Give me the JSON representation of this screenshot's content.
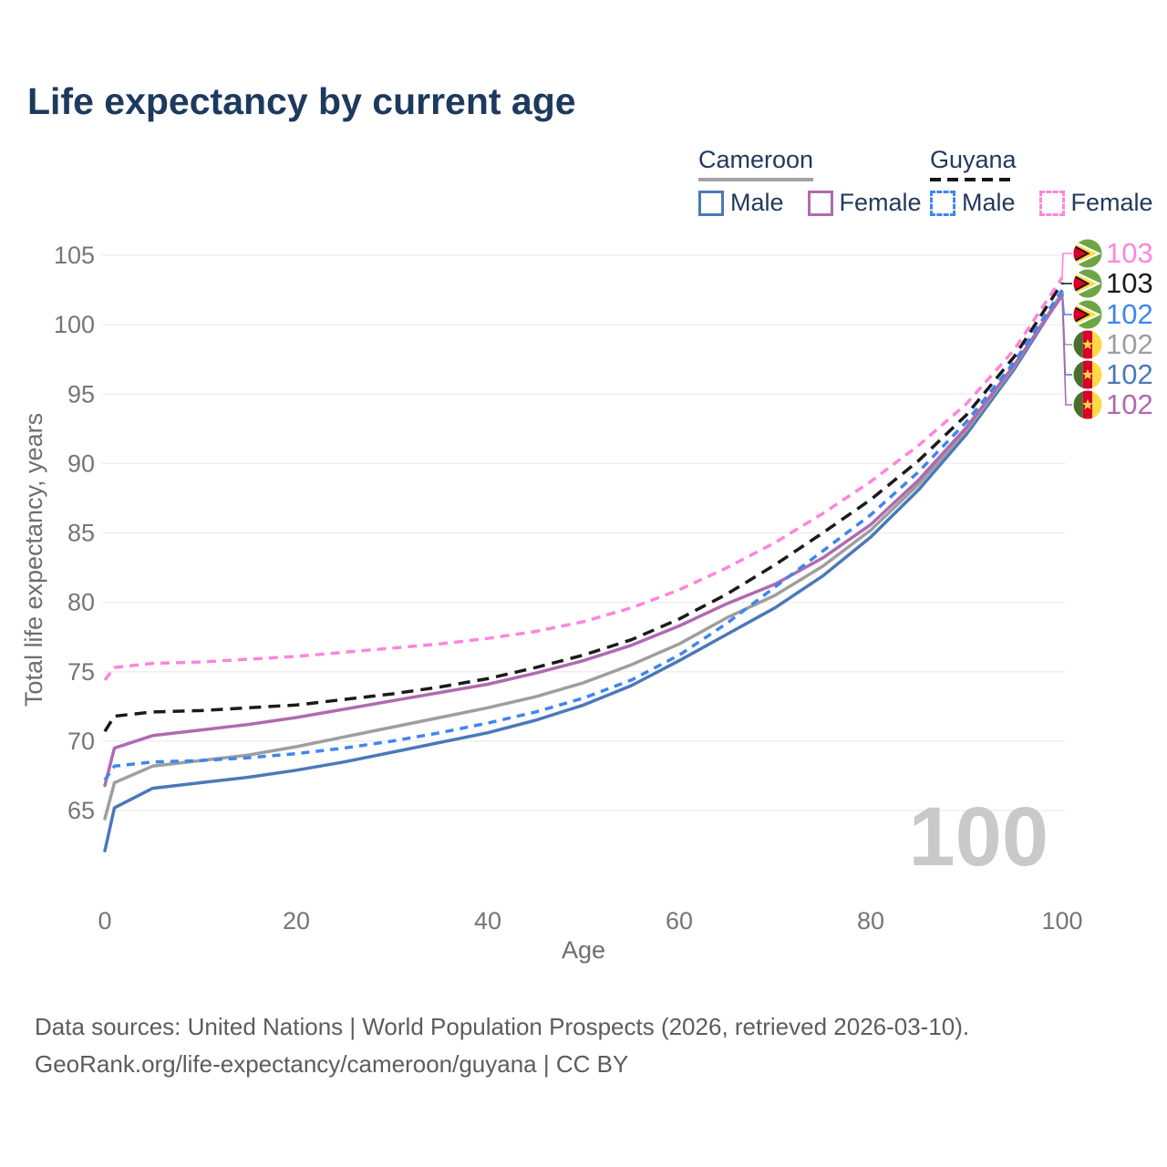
{
  "title": "Life expectancy by current age",
  "legend": {
    "groups": [
      {
        "country": "Cameroon",
        "underline_style": "solid",
        "underline_color": "#a2a2a2",
        "items": [
          {
            "label": "Male",
            "series": "cameroon_male",
            "color": "#4a79b8",
            "style": "solid"
          },
          {
            "label": "Female",
            "series": "cameroon_female",
            "color": "#b06ab0",
            "style": "solid"
          }
        ]
      },
      {
        "country": "Guyana",
        "underline_style": "dashed",
        "underline_color": "#161616",
        "items": [
          {
            "label": "Male",
            "series": "guyana_male",
            "color": "#3e86ee",
            "style": "dashed"
          },
          {
            "label": "Female",
            "series": "guyana_female",
            "color": "#ff85dc",
            "style": "dashed"
          }
        ]
      }
    ]
  },
  "axes": {
    "x": {
      "title": "Age",
      "ticks": [
        0,
        20,
        40,
        60,
        80,
        100
      ],
      "range": [
        0,
        100
      ]
    },
    "y": {
      "title": "Total life expectancy, years",
      "ticks": [
        65,
        70,
        75,
        80,
        85,
        90,
        95,
        100,
        105
      ],
      "range": [
        62,
        106
      ]
    }
  },
  "watermark": "100",
  "end_labels": [
    {
      "value": "103",
      "flag": "guyana",
      "series": "guyana_female",
      "color": "#ff85dc"
    },
    {
      "value": "103",
      "flag": "guyana",
      "series": "guyana_total",
      "color": "#1a1a1a"
    },
    {
      "value": "102",
      "flag": "guyana",
      "series": "guyana_male",
      "color": "#3e86ee"
    },
    {
      "value": "102",
      "flag": "cameroon",
      "series": "cameroon_total",
      "color": "#9e9e9e"
    },
    {
      "value": "102",
      "flag": "cameroon",
      "series": "cameroon_male",
      "color": "#4a79b8"
    },
    {
      "value": "102",
      "flag": "cameroon",
      "series": "cameroon_female",
      "color": "#b06ab0"
    }
  ],
  "footer": {
    "line1": "Data sources: United Nations | World Population Prospects (2026, retrieved 2026-03-10).",
    "line2": "GeoRank.org/life-expectancy/cameroon/guyana | CC BY"
  },
  "chart_data": {
    "type": "line",
    "title": "Life expectancy by current age",
    "xlabel": "Age",
    "ylabel": "Total life expectancy, years",
    "xlim": [
      0,
      100
    ],
    "ylim": [
      62,
      106
    ],
    "grid": "horizontal",
    "legend_position": "top-right",
    "x": [
      0,
      1,
      5,
      10,
      15,
      20,
      25,
      30,
      35,
      40,
      45,
      50,
      55,
      60,
      65,
      70,
      75,
      80,
      85,
      90,
      95,
      100
    ],
    "series": [
      {
        "name": "Cameroon Male",
        "id": "cameroon_male",
        "country": "Cameroon",
        "sex": "male",
        "color": "#4a79b8",
        "line": "solid",
        "end_label": "102",
        "values": [
          62.1,
          65.2,
          66.6,
          67.0,
          67.4,
          67.9,
          68.5,
          69.2,
          69.9,
          70.6,
          71.5,
          72.6,
          74.0,
          75.8,
          77.7,
          79.6,
          81.9,
          84.7,
          88.1,
          92.1,
          96.8,
          102.2
        ]
      },
      {
        "name": "Cameroon (both sexes)",
        "id": "cameroon_total",
        "country": "Cameroon",
        "sex": "total",
        "color": "#9e9e9e",
        "line": "solid",
        "end_label": "102",
        "values": [
          64.4,
          67.0,
          68.2,
          68.6,
          69.0,
          69.6,
          70.3,
          71.0,
          71.7,
          72.4,
          73.2,
          74.2,
          75.5,
          77.0,
          78.9,
          80.5,
          82.6,
          85.2,
          88.5,
          92.4,
          97.0,
          102.3
        ]
      },
      {
        "name": "Cameroon Female",
        "id": "cameroon_female",
        "country": "Cameroon",
        "sex": "female",
        "color": "#b06ab0",
        "line": "solid",
        "end_label": "102",
        "values": [
          66.8,
          69.5,
          70.4,
          70.8,
          71.2,
          71.7,
          72.3,
          72.9,
          73.5,
          74.1,
          74.9,
          75.8,
          76.9,
          78.3,
          79.9,
          81.3,
          83.2,
          85.6,
          88.8,
          92.6,
          97.1,
          102.1
        ]
      },
      {
        "name": "Guyana (both sexes)",
        "id": "guyana_total",
        "country": "Guyana",
        "sex": "total",
        "color": "#1a1a1a",
        "line": "dashed",
        "dash": "13 8",
        "end_label": "103",
        "values": [
          70.7,
          71.8,
          72.1,
          72.2,
          72.4,
          72.6,
          73.0,
          73.4,
          73.9,
          74.5,
          75.3,
          76.2,
          77.3,
          78.8,
          80.6,
          82.7,
          85.0,
          87.4,
          90.2,
          93.5,
          97.7,
          103.0
        ]
      },
      {
        "name": "Guyana Male",
        "id": "guyana_male",
        "country": "Guyana",
        "sex": "male",
        "color": "#3e86ee",
        "line": "dashed",
        "dash": "9 7",
        "end_label": "102",
        "values": [
          67.2,
          68.2,
          68.5,
          68.6,
          68.8,
          69.1,
          69.5,
          70.0,
          70.6,
          71.3,
          72.1,
          73.1,
          74.4,
          76.2,
          78.5,
          81.1,
          83.7,
          86.3,
          89.4,
          93.0,
          97.3,
          102.5
        ]
      },
      {
        "name": "Guyana Female",
        "id": "guyana_female",
        "country": "Guyana",
        "sex": "female",
        "color": "#ff85dc",
        "line": "dashed",
        "dash": "10 7",
        "end_label": "103",
        "values": [
          74.4,
          75.3,
          75.6,
          75.7,
          75.9,
          76.1,
          76.4,
          76.7,
          77.0,
          77.4,
          77.9,
          78.6,
          79.6,
          80.9,
          82.5,
          84.3,
          86.4,
          88.7,
          91.3,
          94.3,
          98.2,
          103.4
        ]
      }
    ]
  }
}
